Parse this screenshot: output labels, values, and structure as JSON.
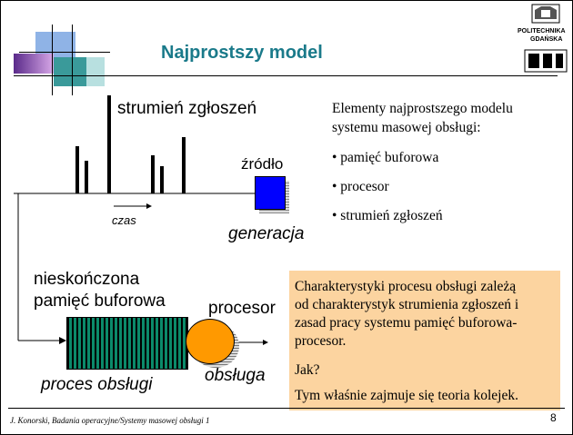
{
  "slide": {
    "title": "Najprostszy model",
    "page_number": "8",
    "footer": "J. Konorski, Badania operacyjne/Systemy masowej obsługi 1"
  },
  "logo": {
    "text_line1": "POLITECHNIKA",
    "text_line2": "GDAŃSKA",
    "letters": "ETI"
  },
  "diagram": {
    "stream_label": "strumień zgłoszeń",
    "time_label": "czas",
    "source_label": "źródło",
    "generation_label": "generacja",
    "buffer_label_line1": "nieskończona",
    "buffer_label_line2": "pamięć buforowa",
    "processor_label": "procesor",
    "service_process_label": "proces obsługi",
    "service_label": "obsługa"
  },
  "elements": {
    "intro_line1": "Elementy najprostszego modelu",
    "intro_line2": "systemu masowej obsługi:",
    "items": [
      "• pamięć buforowa",
      "• procesor",
      "• strumień zgłoszeń"
    ]
  },
  "characteristics": {
    "line1": "Charakterystyki procesu obsługi zależą",
    "line2": "od charakterystyk strumienia zgłoszeń i",
    "line3": "zasad pracy systemu pamięć buforowa-",
    "line4": "procesor.",
    "question": "Jak?",
    "answer": "Tym właśnie zajmuje się teoria kolejek."
  },
  "colors": {
    "title": "#1a7a8a",
    "source_box": "#0000ff",
    "buffer": "#0b8a6a",
    "processor": "#ff9900",
    "info_box": "#fcd4a0"
  }
}
